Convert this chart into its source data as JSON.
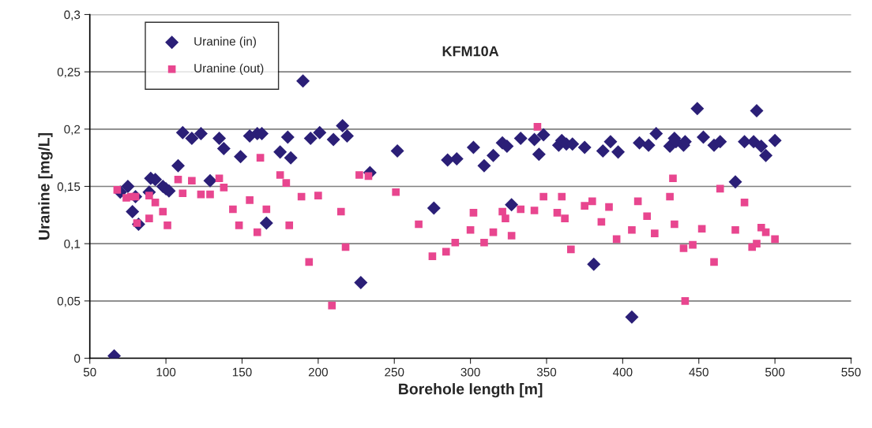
{
  "chart_data": {
    "type": "scatter",
    "title": "KFM10A",
    "xlabel": "Borehole length [m]",
    "ylabel": "Uranine [mg/L]",
    "xlim": [
      50,
      550
    ],
    "xticks": [
      50,
      100,
      150,
      200,
      250,
      300,
      350,
      400,
      450,
      500,
      550
    ],
    "ylim": [
      0,
      0.3
    ],
    "yticks": [
      {
        "value": 0,
        "label": "0"
      },
      {
        "value": 0.05,
        "label": "0,05"
      },
      {
        "value": 0.1,
        "label": "0,1"
      },
      {
        "value": 0.15,
        "label": "0,15"
      },
      {
        "value": 0.2,
        "label": "0,2"
      },
      {
        "value": 0.25,
        "label": "0,25"
      },
      {
        "value": 0.3,
        "label": "0,3"
      }
    ],
    "grid": "y",
    "legend": "top left",
    "series": [
      {
        "name": "Uranine (in)",
        "color": "#2b1f77",
        "marker": "diamond",
        "x": [
          66,
          70,
          75,
          78,
          80,
          82,
          89,
          90,
          93,
          98,
          100,
          102,
          108,
          111,
          117,
          123,
          129,
          135,
          138,
          149,
          155,
          160,
          163,
          166,
          175,
          180,
          182,
          190,
          195,
          201,
          210,
          216,
          219,
          228,
          234,
          252,
          276,
          285,
          291,
          302,
          309,
          315,
          321,
          324,
          327,
          333,
          342,
          345,
          348,
          358,
          360,
          363,
          367,
          375,
          381,
          387,
          392,
          397,
          406,
          411,
          417,
          422,
          431,
          434,
          435,
          440,
          441,
          449,
          453,
          460,
          464,
          474,
          480,
          486,
          488,
          491,
          494,
          500
        ],
        "values": [
          0.002,
          0.145,
          0.15,
          0.128,
          0.141,
          0.117,
          0.145,
          0.157,
          0.156,
          0.15,
          0.148,
          0.146,
          0.168,
          0.197,
          0.192,
          0.196,
          0.155,
          0.192,
          0.183,
          0.176,
          0.194,
          0.196,
          0.196,
          0.118,
          0.18,
          0.193,
          0.175,
          0.242,
          0.192,
          0.197,
          0.191,
          0.203,
          0.194,
          0.066,
          0.162,
          0.181,
          0.131,
          0.173,
          0.174,
          0.184,
          0.168,
          0.177,
          0.188,
          0.185,
          0.134,
          0.192,
          0.191,
          0.178,
          0.195,
          0.186,
          0.19,
          0.187,
          0.187,
          0.184,
          0.082,
          0.181,
          0.189,
          0.18,
          0.036,
          0.188,
          0.186,
          0.196,
          0.185,
          0.192,
          0.189,
          0.186,
          0.189,
          0.218,
          0.193,
          0.186,
          0.189,
          0.154,
          0.189,
          0.189,
          0.216,
          0.185,
          0.177,
          0.19
        ]
      },
      {
        "name": "Uranine (out)",
        "color": "#e8468f",
        "marker": "square",
        "x": [
          68,
          74,
          77,
          80,
          81,
          89,
          89,
          93,
          98,
          101,
          108,
          111,
          117,
          123,
          129,
          135,
          138,
          144,
          148,
          155,
          160,
          162,
          166,
          175,
          179,
          181,
          189,
          194,
          200,
          209,
          215,
          218,
          227,
          233,
          251,
          266,
          275,
          284,
          290,
          300,
          302,
          309,
          315,
          321,
          323,
          327,
          333,
          342,
          344,
          348,
          357,
          360,
          362,
          366,
          375,
          380,
          386,
          391,
          396,
          406,
          410,
          416,
          421,
          431,
          433,
          434,
          440,
          441,
          446,
          452,
          460,
          464,
          474,
          480,
          485,
          488,
          491,
          494,
          500
        ],
        "values": [
          0.147,
          0.14,
          0.141,
          0.141,
          0.118,
          0.142,
          0.122,
          0.136,
          0.128,
          0.116,
          0.156,
          0.144,
          0.155,
          0.143,
          0.143,
          0.157,
          0.149,
          0.13,
          0.116,
          0.138,
          0.11,
          0.175,
          0.13,
          0.16,
          0.153,
          0.116,
          0.141,
          0.084,
          0.142,
          0.046,
          0.128,
          0.097,
          0.16,
          0.159,
          0.145,
          0.117,
          0.089,
          0.093,
          0.101,
          0.112,
          0.127,
          0.101,
          0.11,
          0.128,
          0.122,
          0.107,
          0.13,
          0.129,
          0.202,
          0.141,
          0.127,
          0.141,
          0.122,
          0.095,
          0.133,
          0.137,
          0.119,
          0.132,
          0.104,
          0.112,
          0.137,
          0.124,
          0.109,
          0.141,
          0.157,
          0.117,
          0.096,
          0.05,
          0.099,
          0.113,
          0.084,
          0.148,
          0.112,
          0.136,
          0.097,
          0.1,
          0.114,
          0.11,
          0.104
        ]
      }
    ]
  }
}
